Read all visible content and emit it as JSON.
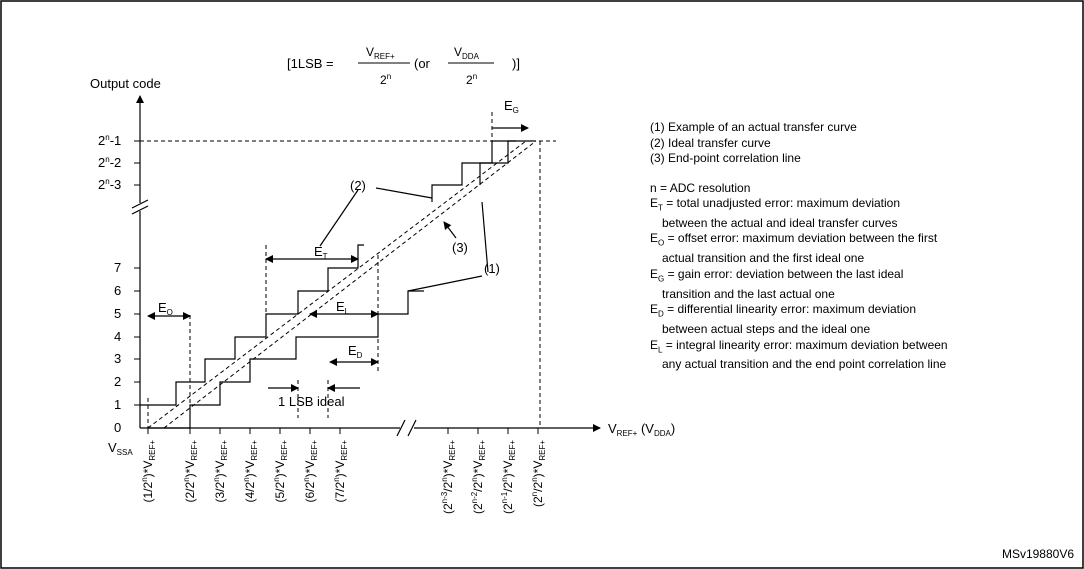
{
  "formula": {
    "prefix": "[1LSB =",
    "num1": "V",
    "num1_sub": "REF+",
    "den": "2",
    "den_sup": "n",
    "or": "(or",
    "num2": "V",
    "num2_sub": "DDA",
    "close": ")]"
  },
  "y_axis": {
    "title": "Output code",
    "top_codes": [
      {
        "base": "2",
        "sup": "n",
        "tail": "-1"
      },
      {
        "base": "2",
        "sup": "n",
        "tail": "-2"
      },
      {
        "base": "2",
        "sup": "n",
        "tail": "-3"
      }
    ],
    "codes": [
      "7",
      "6",
      "5",
      "4",
      "3",
      "2",
      "1",
      "0"
    ]
  },
  "x_axis": {
    "origin": {
      "base": "V",
      "sub": "SSA"
    },
    "title": {
      "base": "V",
      "sub": "REF+",
      "tail": " (V",
      "sub2": "DDA",
      "end": ")"
    },
    "ticks": [
      {
        "a": "(1/2",
        "sup": "n",
        "b": ")*V",
        "sub": "REF+"
      },
      {
        "a": "(2/2",
        "sup": "n",
        "b": ")*V",
        "sub": "REF+"
      },
      {
        "a": "(3/2",
        "sup": "n",
        "b": ")*V",
        "sub": "REF+"
      },
      {
        "a": "(4/2",
        "sup": "n",
        "b": ")*V",
        "sub": "REF+"
      },
      {
        "a": "(5/2",
        "sup": "n",
        "b": ")*V",
        "sub": "REF+"
      },
      {
        "a": "(6/2",
        "sup": "n",
        "b": ")*V",
        "sub": "REF+"
      },
      {
        "a": "(7/2",
        "sup": "n",
        "b": ")*V",
        "sub": "REF+"
      },
      {
        "a": "(2",
        "sup": "n-3",
        "b": "/2",
        "sup2": "n",
        "c": ")*V",
        "sub": "REF+"
      },
      {
        "a": "(2",
        "sup": "n-2",
        "b": "/2",
        "sup2": "n",
        "c": ")*V",
        "sub": "REF+"
      },
      {
        "a": "(2",
        "sup": "n-1",
        "b": "/2",
        "sup2": "n",
        "c": ")*V",
        "sub": "REF+"
      },
      {
        "a": "(2",
        "sup": "n",
        "b": "/2",
        "sup2": "n",
        "c": ")*V",
        "sub": "REF+"
      }
    ]
  },
  "annotations": {
    "curve1": "(1)",
    "curve2": "(2)",
    "curve3": "(3)",
    "ET": {
      "base": "E",
      "sub": "T"
    },
    "EL": {
      "base": "E",
      "sub": "L"
    },
    "ED": {
      "base": "E",
      "sub": "D"
    },
    "EO": {
      "base": "E",
      "sub": "O"
    },
    "EG": {
      "base": "E",
      "sub": "G"
    },
    "lsb_ideal": "1 LSB ideal"
  },
  "legend": {
    "items": [
      "(1) Example of an actual transfer curve",
      "(2) Ideal transfer curve",
      "(3) End-point correlation line"
    ],
    "n_def": "n = ADC resolution",
    "errors": [
      {
        "sym": "E",
        "sub": "T",
        "line1": " = total unadjusted error: maximum deviation",
        "line2": "between the actual and ideal transfer curves"
      },
      {
        "sym": "E",
        "sub": "O",
        "line1": " = offset error: maximum deviation between the first",
        "line2": "actual transition and the first ideal one"
      },
      {
        "sym": "E",
        "sub": "G",
        "line1": " = gain error: deviation between the last ideal",
        "line2": "transition and the last actual one"
      },
      {
        "sym": "E",
        "sub": "D",
        "line1": " = differential linearity error: maximum deviation",
        "line2": "between actual steps and the ideal one"
      },
      {
        "sym": "E",
        "sub": "L",
        "line1": " = integral linearity error: maximum deviation between",
        "line2": "any actual transition and the end point correlation line"
      }
    ]
  },
  "reference": "MSv19880V6"
}
